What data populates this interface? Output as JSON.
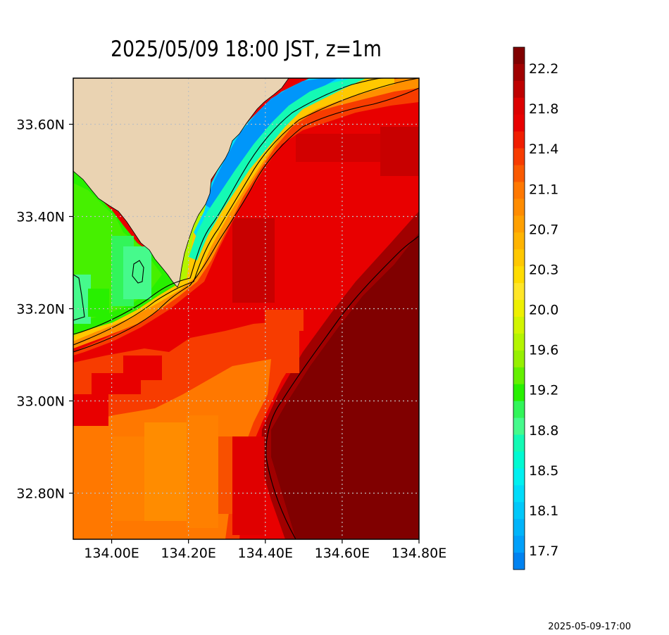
{
  "title": "2025/05/09 18:00 JST, z=1m",
  "footer_timestamp": "2025-05-09-17:00",
  "map": {
    "lat_labels": [
      "33.60N",
      "33.40N",
      "33.20N",
      "33.00N",
      "32.80N"
    ],
    "lon_labels": [
      "134.00E",
      "134.20E",
      "134.40E",
      "134.60E",
      "134.80E"
    ],
    "lat_values": [
      33.6,
      33.4,
      33.2,
      33.0,
      32.8
    ],
    "lon_values": [
      134.0,
      134.2,
      134.4,
      134.6,
      134.8
    ],
    "lon_range": [
      133.9,
      134.8
    ],
    "lat_range": [
      32.7,
      33.7
    ],
    "land_color": "#EAD3B2",
    "gridlines": "dotted"
  },
  "colorbar": {
    "labels": [
      "22.2",
      "21.8",
      "21.4",
      "21.1",
      "20.7",
      "20.3",
      "20.0",
      "19.6",
      "19.2",
      "18.8",
      "18.5",
      "18.1",
      "17.7"
    ],
    "colors_top_to_bottom": [
      "#800000",
      "#A00000",
      "#BE0000",
      "#DC0000",
      "#E80000",
      "#F01E00",
      "#F73C00",
      "#FA5A00",
      "#FF7800",
      "#FF8C00",
      "#FFA000",
      "#FFB400",
      "#FFC800",
      "#FFDC00",
      "#FFE628",
      "#EEF000",
      "#D2F500",
      "#B4F500",
      "#96F000",
      "#64F000",
      "#28F000",
      "#32F55A",
      "#46FA8C",
      "#14FAB4",
      "#00FAD2",
      "#00F0F0",
      "#00DCFA",
      "#00C8FA",
      "#00B4FA",
      "#00A0FA",
      "#0082F0"
    ]
  }
}
